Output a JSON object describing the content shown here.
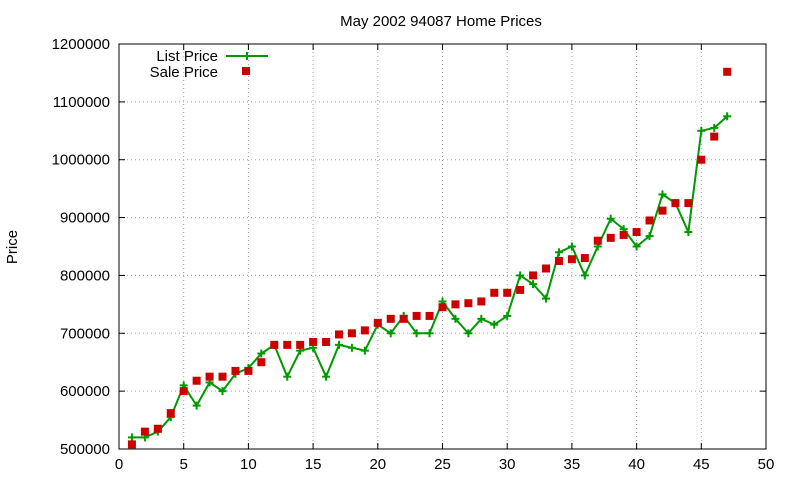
{
  "chart_data": {
    "type": "line",
    "title": "May 2002 94087 Home Prices",
    "xlabel": "",
    "ylabel": "Price",
    "xlim": [
      0,
      50
    ],
    "ylim": [
      500000,
      1200000
    ],
    "xticks": [
      0,
      5,
      10,
      15,
      20,
      25,
      30,
      35,
      40,
      45,
      50
    ],
    "yticks": [
      500000,
      600000,
      700000,
      800000,
      900000,
      1000000,
      1100000,
      1200000
    ],
    "grid": true,
    "legend_position": "top-left",
    "series": [
      {
        "name": "List Price",
        "style": "line+cross",
        "color": "#009900",
        "x": [
          1,
          2,
          3,
          4,
          5,
          6,
          7,
          8,
          9,
          10,
          11,
          12,
          13,
          14,
          15,
          16,
          17,
          18,
          19,
          20,
          21,
          22,
          23,
          24,
          25,
          26,
          27,
          28,
          29,
          30,
          31,
          32,
          33,
          34,
          35,
          36,
          37,
          38,
          39,
          40,
          41,
          42,
          43,
          44,
          45,
          46,
          47
        ],
        "y": [
          520000,
          520000,
          530000,
          555000,
          610000,
          575000,
          615000,
          600000,
          630000,
          640000,
          665000,
          680000,
          625000,
          670000,
          675000,
          625000,
          680000,
          675000,
          670000,
          715000,
          700000,
          730000,
          700000,
          700000,
          755000,
          725000,
          700000,
          725000,
          715000,
          730000,
          800000,
          785000,
          760000,
          840000,
          850000,
          800000,
          850000,
          898000,
          880000,
          850000,
          868000,
          940000,
          925000,
          875000,
          1050000,
          1055000,
          1075000
        ]
      },
      {
        "name": "Sale Price",
        "style": "square",
        "color": "#cc0000",
        "x": [
          1,
          2,
          3,
          4,
          5,
          6,
          7,
          8,
          9,
          10,
          11,
          12,
          13,
          14,
          15,
          16,
          17,
          18,
          19,
          20,
          21,
          22,
          23,
          24,
          25,
          26,
          27,
          28,
          29,
          30,
          31,
          32,
          33,
          34,
          35,
          36,
          37,
          38,
          39,
          40,
          41,
          42,
          43,
          44,
          45,
          46,
          47
        ],
        "y": [
          508000,
          530000,
          535000,
          562000,
          600000,
          618000,
          625000,
          625000,
          635000,
          635000,
          650000,
          680000,
          680000,
          680000,
          685000,
          685000,
          698000,
          700000,
          705000,
          718000,
          725000,
          725000,
          730000,
          730000,
          745000,
          750000,
          752000,
          755000,
          770000,
          770000,
          775000,
          800000,
          812000,
          825000,
          828000,
          830000,
          860000,
          865000,
          870000,
          875000,
          895000,
          912000,
          925000,
          925000,
          1000000,
          1040000,
          1152000
        ]
      }
    ]
  }
}
